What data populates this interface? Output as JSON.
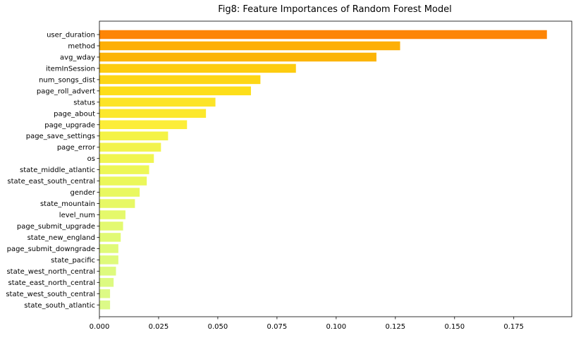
{
  "chart_data": {
    "type": "bar",
    "orientation": "horizontal",
    "title": "Fig8: Feature Importances of Random Forest Model",
    "xlabel": "",
    "ylabel": "",
    "xlim": [
      0,
      0.1995
    ],
    "xticks": [
      "0.000",
      "0.025",
      "0.050",
      "0.075",
      "0.100",
      "0.125",
      "0.150",
      "0.175"
    ],
    "grid": false,
    "categories": [
      "user_duration",
      "method",
      "avg_wday",
      "itemInSession",
      "num_songs_dist",
      "page_roll_advert",
      "status",
      "page_about",
      "page_upgrade",
      "page_save_settings",
      "page_error",
      "os",
      "state_middle_atlantic",
      "state_east_south_central",
      "gender",
      "state_mountain",
      "level_num",
      "page_submit_upgrade",
      "state_new_england",
      "page_submit_downgrade",
      "state_pacific",
      "state_west_north_central",
      "state_east_north_central",
      "state_west_south_central",
      "state_south_atlantic"
    ],
    "values": [
      0.189,
      0.127,
      0.117,
      0.083,
      0.068,
      0.064,
      0.049,
      0.045,
      0.037,
      0.029,
      0.026,
      0.023,
      0.021,
      0.02,
      0.017,
      0.015,
      0.011,
      0.01,
      0.009,
      0.008,
      0.008,
      0.007,
      0.006,
      0.0045,
      0.0045
    ],
    "colors": [
      "#fd8506",
      "#fdaf06",
      "#fcb407",
      "#fdcc10",
      "#fdd616",
      "#fdde1a",
      "#fce427",
      "#fce82c",
      "#fced38",
      "#f4f346",
      "#f2f34d",
      "#f0f550",
      "#edf756",
      "#ebf75b",
      "#e9f860",
      "#e7f865",
      "#e5f96b",
      "#e3f970",
      "#e1fa74",
      "#e0fa78",
      "#dffa7b",
      "#defa7e",
      "#ddfa81",
      "#ddfa85",
      "#dcfa88"
    ]
  }
}
